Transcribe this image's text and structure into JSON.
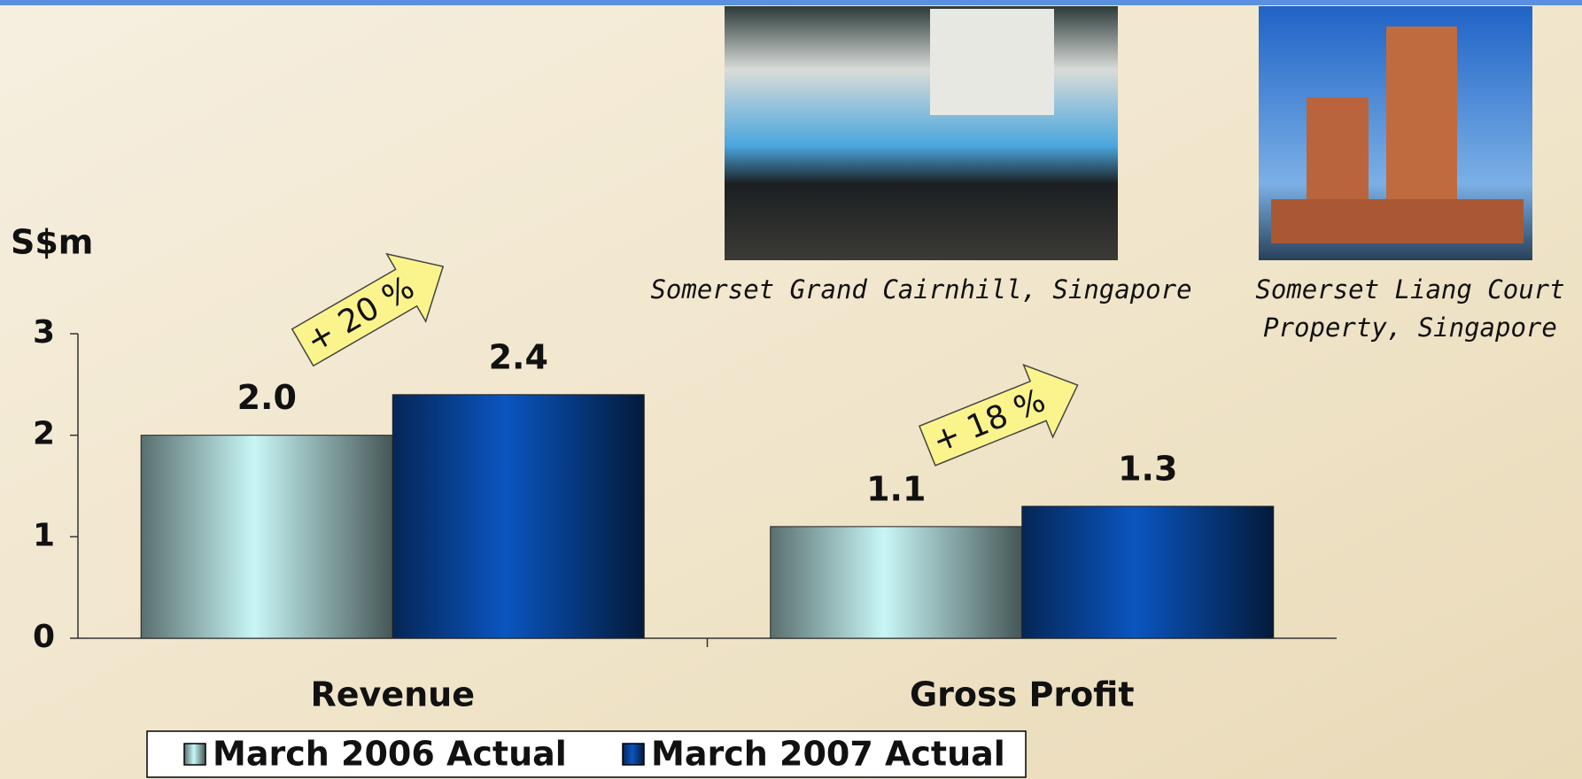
{
  "chart_data": {
    "type": "bar",
    "ylabel": "S$m",
    "categories": [
      "Revenue",
      "Gross Profit"
    ],
    "series": [
      {
        "name": "March 2006 Actual",
        "color": "#c8f6f6",
        "values": [
          2.0,
          1.1
        ],
        "value_labels": [
          "2.0",
          "1.1"
        ]
      },
      {
        "name": "March 2007 Actual",
        "color": "#0a55c0",
        "values": [
          2.4,
          1.3
        ],
        "value_labels": [
          "2.4",
          "1.3"
        ]
      }
    ],
    "ylim": [
      0,
      3
    ],
    "yticks": [
      0,
      1,
      2,
      3
    ],
    "annotations": [
      "+ 20 %",
      "+ 18 %"
    ],
    "photo_captions": [
      [
        "Somerset Grand Cairnhill, Singapore"
      ],
      [
        "Somerset Liang Court",
        "Property, Singapore"
      ]
    ]
  }
}
